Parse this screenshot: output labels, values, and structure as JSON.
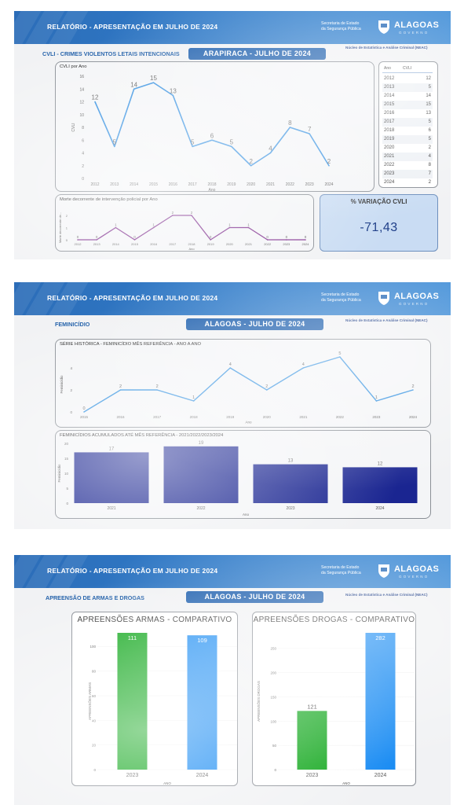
{
  "header": {
    "report_title": "RELATÓRIO - APRESENTAÇÃO EM JULHO DE 2024",
    "secretaria_line1": "Secretaria de Estado",
    "secretaria_line2": "da Segurança Pública",
    "brand": "ALAGOAS",
    "brand_sub": "GOVERNO",
    "neac": "Núcleo de Estatística e Análise Criminal (NEAC)"
  },
  "slide1": {
    "section": "CVLI - CRIMES VIOLENTOS LETAIS INTENCIONAIS",
    "pill": "ARAPIRACA - JULHO DE 2024",
    "table_headers": [
      "Ano",
      "CVLI"
    ],
    "table_rows": [
      [
        "2012",
        "12"
      ],
      [
        "2013",
        "5"
      ],
      [
        "2014",
        "14"
      ],
      [
        "2015",
        "15"
      ],
      [
        "2016",
        "13"
      ],
      [
        "2017",
        "5"
      ],
      [
        "2018",
        "6"
      ],
      [
        "2019",
        "5"
      ],
      [
        "2020",
        "2"
      ],
      [
        "2021",
        "4"
      ],
      [
        "2022",
        "8"
      ],
      [
        "2023",
        "7"
      ],
      [
        "2024",
        "2"
      ]
    ],
    "variation_label": "% VARIAÇÃO CVLI",
    "variation_value": "-71,43"
  },
  "slide2": {
    "section": "FEMINICÍDIO",
    "pill": "ALAGOAS - JULHO DE 2024"
  },
  "slide3": {
    "section": "APREENSÃO DE ARMAS E DROGAS",
    "pill": "ALAGOAS - JULHO DE 2024"
  },
  "colors": {
    "header_blue": "#2c6db8",
    "pill_blue": "#1d5fae",
    "cvli_line": "#2b8be0",
    "policial_line": "#7d2a8c",
    "feminicidio_line": "#2e8fe0",
    "feminicidio_bars": "#1a2591",
    "green_bar": "#13a81e",
    "blue_bar": "#1a8cf3"
  },
  "chart_data": [
    {
      "id": "cvli",
      "type": "line",
      "title": "CVLI por Ano",
      "xlabel": "Ano",
      "ylabel": "CVLI",
      "x": [
        "2012",
        "2013",
        "2014",
        "2015",
        "2016",
        "2017",
        "2018",
        "2019",
        "2020",
        "2021",
        "2022",
        "2023",
        "2024"
      ],
      "values": [
        12,
        5,
        14,
        15,
        13,
        5,
        6,
        5,
        2,
        4,
        8,
        7,
        2
      ],
      "ylim": [
        0,
        16
      ],
      "yticks": [
        0,
        2,
        4,
        6,
        8,
        10,
        12,
        14,
        16
      ]
    },
    {
      "id": "policial",
      "type": "line",
      "title": "Morte decorrente de intervenção policial por Ano",
      "xlabel": "Ano",
      "ylabel": "Morte decorrente de...",
      "x": [
        "2012",
        "2013",
        "2014",
        "2015",
        "2016",
        "2017",
        "2018",
        "2019",
        "2020",
        "2021",
        "2022",
        "2023",
        "2024"
      ],
      "values": [
        0,
        0,
        1,
        0,
        1,
        2,
        2,
        0,
        1,
        1,
        0,
        0,
        0
      ],
      "ylim": [
        0,
        2
      ],
      "yticks": [
        0,
        1,
        2
      ]
    },
    {
      "id": "feminicidio-serie",
      "type": "line",
      "title": "SÉRIE HISTÓRICA - FEMINICÍDIO MÊS REFERÊNCIA - ANO A ANO",
      "xlabel": "Ano",
      "ylabel": "Feminicídio",
      "x": [
        "2015",
        "2016",
        "2017",
        "2018",
        "2019",
        "2020",
        "2021",
        "2022",
        "2023",
        "2024"
      ],
      "values": [
        0,
        2,
        2,
        1,
        4,
        2,
        4,
        5,
        1,
        2
      ],
      "ylim": [
        0,
        5
      ],
      "yticks": [
        0,
        2,
        4
      ]
    },
    {
      "id": "feminicidio-acumulado",
      "type": "bar",
      "title": "FEMINICÍDIOS ACUMULADOS ATÉ MÊS REFERÊNCIA - 2021/2022/2023/2024",
      "xlabel": "Ano",
      "ylabel": "Feminicídio",
      "categories": [
        "2021",
        "2022",
        "2023",
        "2024"
      ],
      "values": [
        17,
        19,
        13,
        12
      ],
      "ylim": [
        0,
        20
      ],
      "yticks": [
        0,
        5,
        10,
        15,
        20
      ]
    },
    {
      "id": "armas",
      "type": "bar",
      "title": "APREENSÕES ARMAS - COMPARATIVO",
      "xlabel": "ANO",
      "ylabel": "APREENSÕES ARMAS",
      "categories": [
        "2023",
        "2024"
      ],
      "values": [
        111,
        109
      ],
      "ylim": [
        0,
        111
      ],
      "yticks": [
        0,
        20,
        40,
        60,
        80,
        100
      ]
    },
    {
      "id": "drogas",
      "type": "bar",
      "title": "APREENSÕES DROGAS - COMPARATIVO",
      "xlabel": "ANO",
      "ylabel": "APREENSÕES DROGAS",
      "categories": [
        "2023",
        "2024"
      ],
      "values": [
        121,
        282
      ],
      "ylim": [
        0,
        282
      ],
      "yticks": [
        0,
        50,
        100,
        150,
        200,
        250
      ]
    }
  ]
}
